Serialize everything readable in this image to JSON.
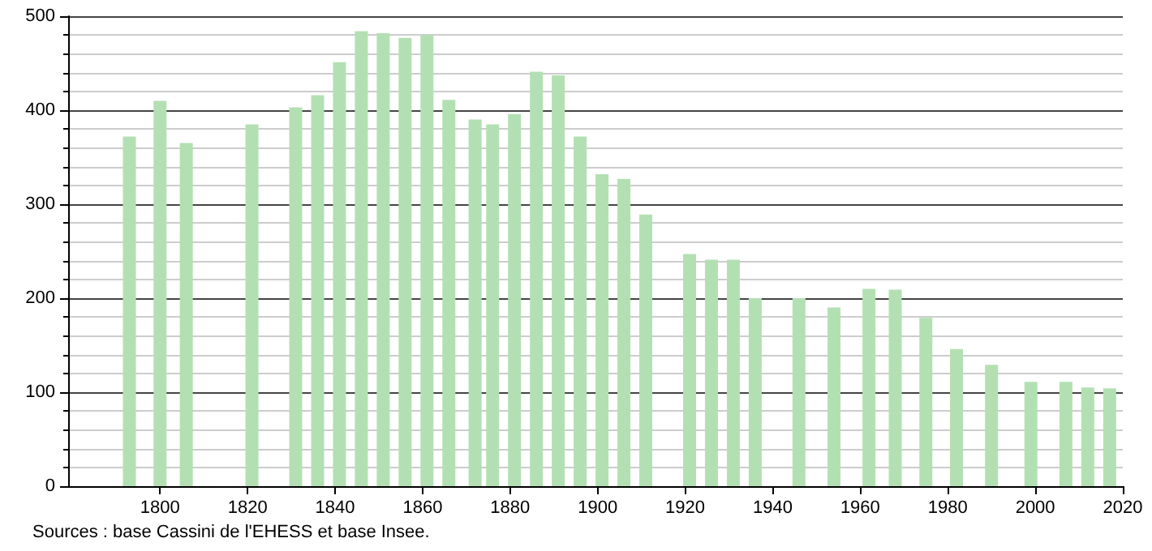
{
  "chart_data": {
    "type": "bar",
    "x": [
      1793,
      1800,
      1806,
      1821,
      1831,
      1836,
      1841,
      1846,
      1851,
      1856,
      1861,
      1866,
      1872,
      1876,
      1881,
      1886,
      1891,
      1896,
      1901,
      1906,
      1911,
      1921,
      1926,
      1931,
      1936,
      1946,
      1954,
      1962,
      1968,
      1975,
      1982,
      1990,
      1999,
      2007,
      2012,
      2017
    ],
    "values": [
      372,
      410,
      365,
      385,
      403,
      416,
      451,
      484,
      482,
      477,
      480,
      411,
      390,
      385,
      396,
      441,
      437,
      372,
      332,
      327,
      289,
      247,
      241,
      241,
      200,
      200,
      190,
      210,
      209,
      179,
      146,
      129,
      111,
      111,
      105,
      104
    ],
    "color": "#b3e0b3",
    "xlim": [
      1779,
      2020
    ],
    "xticks": [
      1800,
      1820,
      1840,
      1860,
      1880,
      1900,
      1920,
      1940,
      1960,
      1980,
      2000,
      2020
    ],
    "ylim": [
      0,
      500
    ],
    "yticks": [
      0,
      100,
      200,
      300,
      400,
      500
    ],
    "grid": "y",
    "annotations": [
      "Sources : base Cassini de l'EHESS et base Insee."
    ]
  }
}
